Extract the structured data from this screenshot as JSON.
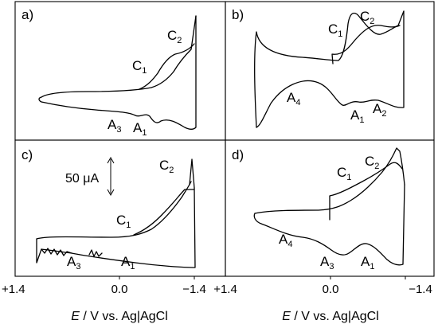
{
  "figure": {
    "panel_letters": [
      "a)",
      "b)",
      "c)",
      "d)"
    ],
    "scale_bar_label": "50 μA",
    "x_axis_title": {
      "italic": "E",
      "rest": " / V vs. Ag|AgCl"
    },
    "x_tick_labels_left": [
      "+1.4",
      "0.0",
      "−1.4"
    ],
    "x_tick_labels_right": [
      "+1.4",
      "0.0",
      "−1.4"
    ],
    "peak_labels": {
      "a": [
        {
          "base": "C",
          "sub": "1"
        },
        {
          "base": "C",
          "sub": "2"
        },
        {
          "base": "A",
          "sub": "3"
        },
        {
          "base": "A",
          "sub": "1"
        }
      ],
      "b": [
        {
          "base": "C",
          "sub": "1"
        },
        {
          "base": "C",
          "sub": "2"
        },
        {
          "base": "A",
          "sub": "4"
        },
        {
          "base": "A",
          "sub": "1"
        },
        {
          "base": "A",
          "sub": "2"
        }
      ],
      "c": [
        {
          "base": "C",
          "sub": "2"
        },
        {
          "base": "C",
          "sub": "1"
        },
        {
          "base": "A",
          "sub": "3"
        },
        {
          "base": "A",
          "sub": "1"
        }
      ],
      "d": [
        {
          "base": "C",
          "sub": "1"
        },
        {
          "base": "C",
          "sub": "2"
        },
        {
          "base": "A",
          "sub": "4"
        },
        {
          "base": "A",
          "sub": "3"
        },
        {
          "base": "A",
          "sub": "1"
        }
      ]
    }
  },
  "chart_data": [
    {
      "panel": "a)",
      "type": "line",
      "xlabel": "E / V vs. Ag|AgCl",
      "xlim": [
        1.4,
        -1.4
      ],
      "series": [
        {
          "x": [
            1.05,
            0.8,
            0.5,
            0.2,
            -0.1,
            -0.4,
            -0.6,
            -0.8,
            -0.9,
            -1.0,
            -1.1,
            -1.15,
            -1.2,
            -1.22,
            -1.23
          ],
          "y": [
            5,
            7,
            8,
            8,
            8,
            8,
            10,
            18,
            28,
            40,
            50,
            60,
            80,
            130,
            200
          ]
        },
        {
          "x": [
            -1.23,
            -1.22,
            -1.15,
            -1.0,
            -0.85,
            -0.75,
            -0.6,
            -0.45,
            -0.3,
            -0.1,
            0.2,
            0.6,
            0.9,
            1.05
          ],
          "y": [
            200,
            -20,
            -55,
            -47,
            -44,
            -38,
            -40,
            -33,
            -37,
            -30,
            -27,
            -20,
            -10,
            5
          ]
        }
      ]
    },
    {
      "panel": "b)",
      "type": "line",
      "xlabel": "E / V vs. Ag|AgCl",
      "xlim": [
        1.4,
        -1.4
      ],
      "series": [
        {
          "x": [
            1.05,
            1.0,
            0.8,
            0.5,
            0.2,
            -0.1,
            -0.3,
            -0.5,
            -0.6,
            -0.8,
            -0.95,
            -1.05,
            -1.1,
            -1.15
          ],
          "y": [
            -10,
            50,
            30,
            22,
            20,
            18,
            15,
            40,
            90,
            60,
            55,
            70,
            72,
            75
          ]
        },
        {
          "x": [
            -1.15,
            -1.1,
            -0.95,
            -0.8,
            -0.6,
            -0.45,
            -0.2,
            0.1,
            0.4,
            0.7,
            0.9,
            1.05
          ],
          "y": [
            -55,
            -55,
            -40,
            -42,
            -38,
            -45,
            -30,
            -15,
            -5,
            -10,
            -20,
            -90
          ]
        }
      ]
    },
    {
      "panel": "c)",
      "type": "line",
      "xlabel": "E / V vs. Ag|AgCl",
      "xlim": [
        1.4,
        -1.4
      ],
      "series": [
        {
          "x": [
            1.05,
            0.8,
            0.5,
            0.2,
            -0.1,
            -0.3,
            -0.5,
            -0.7,
            -0.9,
            -1.05,
            -1.12,
            -1.16,
            -1.18
          ],
          "y": [
            5,
            5,
            5,
            6,
            8,
            12,
            20,
            45,
            70,
            90,
            100,
            120,
            170
          ]
        },
        {
          "x": [
            -1.18,
            -1.17,
            -1.0,
            -0.7,
            -0.4,
            -0.1,
            0.2,
            0.5,
            0.8,
            1.05
          ],
          "y": [
            170,
            -40,
            -37,
            -34,
            -31,
            -28,
            -25,
            -20,
            -12,
            5
          ]
        }
      ]
    },
    {
      "panel": "d)",
      "type": "line",
      "xlabel": "E / V vs. Ag|AgCl",
      "xlim": [
        1.4,
        -1.4
      ],
      "series": [
        {
          "x": [
            1.05,
            0.8,
            0.5,
            0.2,
            0.0,
            -0.2,
            -0.5,
            -0.7,
            -0.85,
            -0.95,
            -1.02,
            -1.08,
            -1.12
          ],
          "y": [
            0,
            5,
            10,
            15,
            18,
            25,
            40,
            55,
            70,
            85,
            110,
            60,
            40
          ]
        },
        {
          "x": [
            -1.12,
            -1.0,
            -0.85,
            -0.65,
            -0.5,
            -0.35,
            -0.1,
            0.2,
            0.45,
            0.75,
            1.05
          ],
          "y": [
            40,
            -60,
            -75,
            -55,
            -70,
            -58,
            -60,
            -50,
            -40,
            -20,
            0
          ]
        }
      ]
    }
  ]
}
